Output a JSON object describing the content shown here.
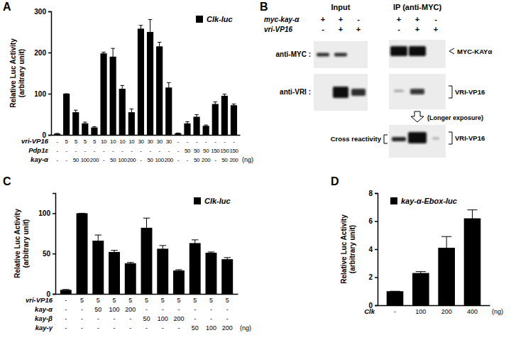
{
  "chart_data": [
    {
      "type": "bar",
      "panel": "A",
      "ylabel": [
        "Relative Luc Activity",
        "(arbitrary unit)"
      ],
      "categories": [
        null,
        null,
        null,
        null,
        null,
        null,
        null,
        null,
        null,
        null,
        null,
        null,
        null,
        null,
        null,
        null,
        null,
        null,
        null,
        null
      ],
      "series": [
        {
          "name": "Clk-luc",
          "color": "#000000",
          "values": [
            3,
            100,
            55,
            28,
            18,
            198,
            190,
            112,
            55,
            258,
            250,
            215,
            115,
            4,
            28,
            44,
            22,
            75,
            95,
            72
          ],
          "errors": [
            0.5,
            0,
            5,
            3,
            2,
            3,
            20,
            8,
            8,
            8,
            30,
            10,
            12,
            0.5,
            4,
            5,
            2,
            5,
            4,
            3
          ]
        }
      ],
      "ylim": [
        0,
        300
      ],
      "yticks": [
        0,
        100,
        200,
        300
      ],
      "legend": "top-right",
      "conditions": {
        "rows": [
          {
            "label": "vri-VP16",
            "values": [
              "-",
              "5",
              "5",
              "5",
              "5",
              "10",
              "10",
              "10",
              "10",
              "30",
              "30",
              "30",
              "30",
              "-",
              "-",
              "-",
              "-",
              "-",
              "-",
              "-"
            ]
          },
          {
            "label": "Pdp1ε",
            "values": [
              "-",
              "-",
              "-",
              "-",
              "-",
              "-",
              "-",
              "-",
              "-",
              "-",
              "-",
              "-",
              "-",
              "-",
              "50",
              "50",
              "50",
              "150",
              "150",
              "150"
            ]
          },
          {
            "label": "kay-α",
            "values": [
              "-",
              "-",
              "50",
              "100",
              "200",
              "-",
              "50",
              "100",
              "200",
              "-",
              "50",
              "100",
              "200",
              "-",
              "-",
              "50",
              "200",
              "-",
              "50",
              "200"
            ]
          }
        ],
        "unit": "(ng)"
      }
    },
    {
      "type": "bar",
      "panel": "C",
      "ylabel": [
        "Relative Luc Activity",
        "(arbitrary unit)"
      ],
      "categories": [
        null,
        null,
        null,
        null,
        null,
        null,
        null,
        null,
        null,
        null,
        null
      ],
      "series": [
        {
          "name": "Clk-luc",
          "color": "#000000",
          "values": [
            5,
            100,
            66,
            52,
            38,
            82,
            56,
            29,
            63,
            51,
            43
          ],
          "errors": [
            0.5,
            0,
            7,
            2,
            1,
            12,
            4,
            1,
            4,
            1,
            2
          ]
        }
      ],
      "ylim": [
        0,
        125
      ],
      "yticks": [
        0,
        50,
        100
      ],
      "legend": "top-right",
      "conditions": {
        "rows": [
          {
            "label": "vri-VP16",
            "values": [
              "-",
              "5",
              "5",
              "5",
              "5",
              "5",
              "5",
              "5",
              "5",
              "5",
              "5"
            ]
          },
          {
            "label": "kay-α",
            "values": [
              "-",
              "-",
              "50",
              "100",
              "200",
              "-",
              "-",
              "-",
              "-",
              "-",
              "-"
            ]
          },
          {
            "label": "kay-β",
            "values": [
              "-",
              "-",
              "-",
              "-",
              "-",
              "50",
              "100",
              "200",
              "-",
              "-",
              "-"
            ]
          },
          {
            "label": "kay-γ",
            "values": [
              "-",
              "-",
              "-",
              "-",
              "-",
              "-",
              "-",
              "-",
              "50",
              "100",
              "200"
            ]
          }
        ],
        "unit": "(ng)"
      }
    },
    {
      "type": "bar",
      "panel": "D",
      "ylabel": [
        "Relative Luc Activity",
        "(arbitrary unit)"
      ],
      "categories": [
        null,
        null,
        null,
        null
      ],
      "series": [
        {
          "name": "kay-α-Ebox-luc",
          "color": "#000000",
          "values": [
            1,
            2.3,
            4.1,
            6.2
          ],
          "errors": [
            0,
            0.1,
            0.8,
            0.6
          ]
        }
      ],
      "ylim": [
        0,
        8
      ],
      "yticks": [
        0,
        2,
        4,
        6,
        8
      ],
      "legend": "top-left",
      "conditions": {
        "rows": [
          {
            "label": "Clk",
            "values": [
              "-",
              "100",
              "200",
              "400"
            ]
          }
        ],
        "unit": "(ng)"
      }
    }
  ],
  "panel_b": {
    "panel": "B",
    "columns": [
      {
        "label": "Input"
      },
      {
        "label": "IP (anti-MYC)"
      }
    ],
    "conditions": [
      {
        "label": "myc-kay-α",
        "values": [
          "+",
          "+",
          "-",
          "+",
          "+",
          "-"
        ]
      },
      {
        "label": "vri-VP16",
        "values": [
          "-",
          "+",
          "+",
          "-",
          "+",
          "+"
        ]
      }
    ],
    "blots": [
      {
        "label": "anti-MYC :",
        "band_label": "MYC-KAYα"
      },
      {
        "label": "anti-VRI :",
        "band_label": "VRI-VP16"
      }
    ],
    "longer_exposure": {
      "label": "(Longer exposure)",
      "left_label": "Cross reactivity",
      "right_label": "VRI-VP16"
    }
  }
}
